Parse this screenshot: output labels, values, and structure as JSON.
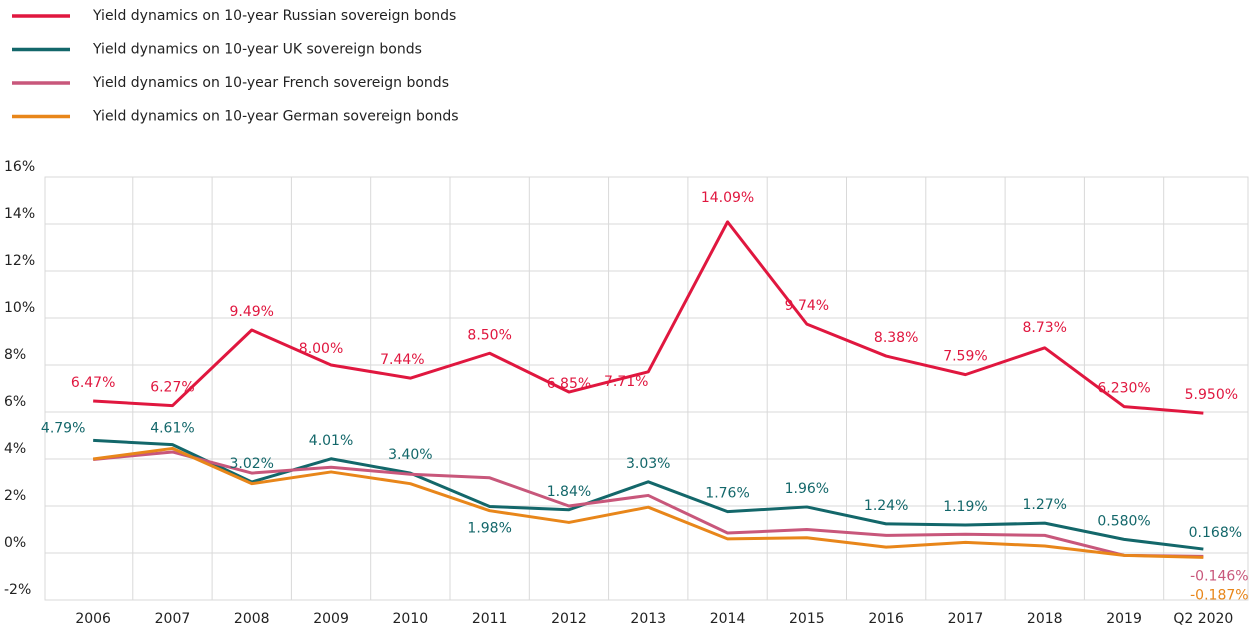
{
  "chart_data": {
    "type": "line",
    "categories": [
      "2006",
      "2007",
      "2008",
      "2009",
      "2010",
      "2011",
      "2012",
      "2013",
      "2014",
      "2015",
      "2016",
      "2017",
      "2018",
      "2019",
      "Q2 2020"
    ],
    "ylim": [
      -2,
      16
    ],
    "yticks": [
      {
        "value": -2,
        "label": "-2%"
      },
      {
        "value": 0,
        "label": "0%"
      },
      {
        "value": 2,
        "label": "2%"
      },
      {
        "value": 4,
        "label": "4%"
      },
      {
        "value": 6,
        "label": "6%"
      },
      {
        "value": 8,
        "label": "8%"
      },
      {
        "value": 10,
        "label": "10%"
      },
      {
        "value": 12,
        "label": "12%"
      },
      {
        "value": 14,
        "label": "14%"
      },
      {
        "value": 16,
        "label": "16%"
      }
    ],
    "grid": true,
    "series": [
      {
        "name": "Yield dynamics on 10-year Russian sovereign bonds",
        "color": "#e0173f",
        "values": [
          6.47,
          6.27,
          9.49,
          8.0,
          7.44,
          8.5,
          6.85,
          7.71,
          14.09,
          9.74,
          8.38,
          7.59,
          8.73,
          6.23,
          5.95
        ],
        "value_labels": [
          "6.47%",
          "6.27%",
          "9.49%",
          "8.00%",
          "7.44%",
          "8.50%",
          "6.85%",
          "7.71%",
          "14.09%",
          "9.74%",
          "8.38%",
          "7.59%",
          "8.73%",
          "6.230%",
          "5.950%"
        ]
      },
      {
        "name": "Yield dynamics on 10-year UK sovereign bonds",
        "color": "#13676a",
        "values": [
          4.79,
          4.61,
          3.02,
          4.01,
          3.4,
          1.98,
          1.84,
          3.03,
          1.76,
          1.96,
          1.24,
          1.19,
          1.27,
          0.58,
          0.168
        ],
        "value_labels": [
          "4.79%",
          "4.61%",
          "3.02%",
          "4.01%",
          "3.40%",
          "1.98%",
          "1.84%",
          "3.03%",
          "1.76%",
          "1.96%",
          "1.24%",
          "1.19%",
          "1.27%",
          "0.580%",
          "0.168%"
        ]
      },
      {
        "name": "Yield dynamics on 10-year French sovereign bonds",
        "color": "#c8577b",
        "values": [
          3.98,
          4.3,
          3.4,
          3.65,
          3.35,
          3.2,
          2.0,
          2.45,
          0.85,
          1.0,
          0.75,
          0.8,
          0.75,
          -0.1,
          -0.146
        ],
        "value_labels": [
          null,
          null,
          null,
          null,
          null,
          null,
          null,
          null,
          null,
          null,
          null,
          null,
          null,
          null,
          "-0.146%"
        ]
      },
      {
        "name": "Yield dynamics on 10-year German sovereign bonds",
        "color": "#e8861a",
        "values": [
          4.0,
          4.45,
          2.95,
          3.45,
          2.95,
          1.8,
          1.3,
          1.95,
          0.6,
          0.65,
          0.25,
          0.45,
          0.3,
          -0.1,
          -0.187
        ],
        "value_labels": [
          null,
          null,
          null,
          null,
          null,
          null,
          null,
          null,
          null,
          null,
          null,
          null,
          null,
          null,
          "-0.187%"
        ]
      }
    ]
  }
}
